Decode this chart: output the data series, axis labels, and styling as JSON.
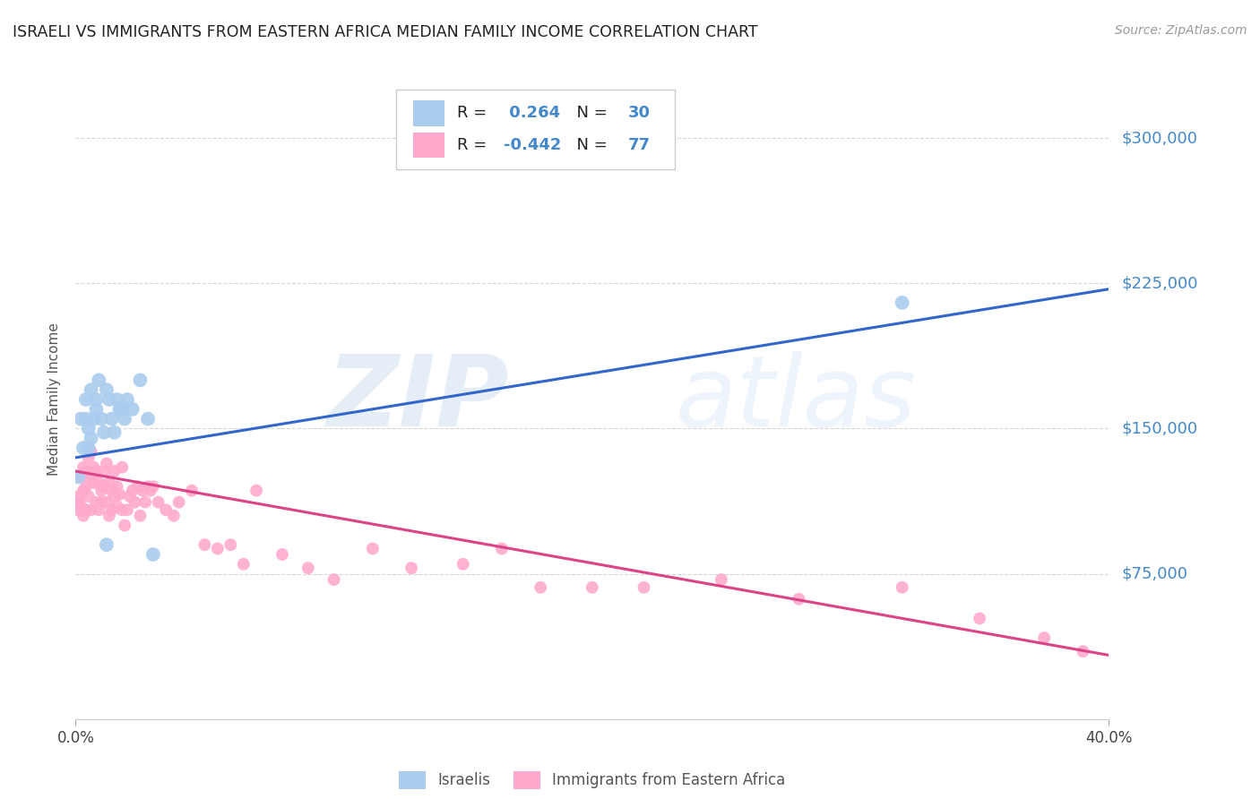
{
  "title": "ISRAELI VS IMMIGRANTS FROM EASTERN AFRICA MEDIAN FAMILY INCOME CORRELATION CHART",
  "source": "Source: ZipAtlas.com",
  "ylabel": "Median Family Income",
  "watermark": "ZIPatlas",
  "israelis": {
    "R": 0.264,
    "N": 30,
    "color": "#aaccee",
    "line_color": "#3366cc",
    "x": [
      0.001,
      0.002,
      0.003,
      0.004,
      0.004,
      0.005,
      0.005,
      0.006,
      0.006,
      0.007,
      0.008,
      0.008,
      0.009,
      0.01,
      0.011,
      0.012,
      0.013,
      0.014,
      0.015,
      0.016,
      0.017,
      0.018,
      0.019,
      0.02,
      0.022,
      0.025,
      0.028,
      0.03,
      0.012,
      0.32
    ],
    "y": [
      125000,
      155000,
      140000,
      165000,
      155000,
      140000,
      150000,
      145000,
      170000,
      155000,
      160000,
      165000,
      175000,
      155000,
      148000,
      170000,
      165000,
      155000,
      148000,
      165000,
      160000,
      160000,
      155000,
      165000,
      160000,
      175000,
      155000,
      85000,
      90000,
      215000
    ],
    "trend_x": [
      0.0,
      0.4
    ],
    "trend_y": [
      135000,
      222000
    ]
  },
  "eastern_africa": {
    "R": -0.442,
    "N": 77,
    "color": "#ffaacc",
    "line_color": "#dd4488",
    "x": [
      0.001,
      0.001,
      0.001,
      0.002,
      0.002,
      0.003,
      0.003,
      0.003,
      0.004,
      0.004,
      0.004,
      0.005,
      0.005,
      0.006,
      0.006,
      0.006,
      0.007,
      0.007,
      0.008,
      0.008,
      0.009,
      0.009,
      0.01,
      0.01,
      0.011,
      0.011,
      0.012,
      0.012,
      0.013,
      0.013,
      0.014,
      0.014,
      0.015,
      0.015,
      0.016,
      0.016,
      0.017,
      0.018,
      0.018,
      0.019,
      0.02,
      0.021,
      0.022,
      0.023,
      0.024,
      0.025,
      0.026,
      0.027,
      0.028,
      0.029,
      0.03,
      0.032,
      0.035,
      0.038,
      0.04,
      0.045,
      0.05,
      0.055,
      0.06,
      0.065,
      0.07,
      0.08,
      0.09,
      0.1,
      0.115,
      0.13,
      0.15,
      0.165,
      0.18,
      0.2,
      0.22,
      0.25,
      0.28,
      0.32,
      0.35,
      0.375,
      0.39
    ],
    "y": [
      115000,
      112000,
      108000,
      125000,
      110000,
      130000,
      118000,
      105000,
      128000,
      120000,
      108000,
      135000,
      115000,
      138000,
      125000,
      108000,
      122000,
      130000,
      128000,
      112000,
      122000,
      108000,
      118000,
      112000,
      128000,
      120000,
      132000,
      112000,
      122000,
      105000,
      118000,
      108000,
      128000,
      115000,
      110000,
      120000,
      116000,
      130000,
      108000,
      100000,
      108000,
      115000,
      118000,
      112000,
      120000,
      105000,
      118000,
      112000,
      120000,
      118000,
      120000,
      112000,
      108000,
      105000,
      112000,
      118000,
      90000,
      88000,
      90000,
      80000,
      118000,
      85000,
      78000,
      72000,
      88000,
      78000,
      80000,
      88000,
      68000,
      68000,
      68000,
      72000,
      62000,
      68000,
      52000,
      42000,
      35000
    ],
    "trend_x": [
      0.0,
      0.4
    ],
    "trend_y": [
      128000,
      33000
    ]
  },
  "ylim": [
    0,
    330000
  ],
  "xlim": [
    0.0,
    0.4
  ],
  "yticks": [
    0,
    75000,
    150000,
    225000,
    300000
  ],
  "ytick_labels": [
    "",
    "$75,000",
    "$150,000",
    "$225,000",
    "$300,000"
  ],
  "background_color": "#ffffff",
  "grid_color": "#cccccc",
  "title_color": "#222222",
  "label_color": "#4488cc",
  "legend_R_color": "#000000",
  "legend_val_color": "#4488cc"
}
